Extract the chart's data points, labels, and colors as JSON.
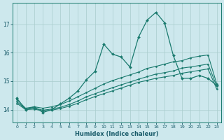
{
  "xlabel": "Humidex (Indice chaleur)",
  "background_color": "#cde8ed",
  "grid_color": "#a8cccc",
  "line_color": "#1a7a6e",
  "x_ticks": [
    0,
    1,
    2,
    3,
    4,
    5,
    6,
    7,
    8,
    9,
    10,
    11,
    12,
    13,
    14,
    15,
    16,
    17,
    18,
    19,
    20,
    21,
    22,
    23
  ],
  "y_ticks": [
    14,
    15,
    16,
    17
  ],
  "xlim": [
    -0.5,
    23.5
  ],
  "ylim": [
    13.55,
    17.75
  ],
  "lines": [
    {
      "x": [
        0,
        1,
        2,
        3,
        4,
        5,
        6,
        7,
        8,
        9,
        10,
        11,
        12,
        13,
        14,
        15,
        16,
        17,
        18,
        19,
        20,
        21,
        22,
        23
      ],
      "y": [
        14.4,
        14.0,
        14.1,
        13.9,
        14.0,
        14.2,
        14.4,
        14.65,
        15.05,
        15.35,
        16.3,
        15.95,
        15.85,
        15.5,
        16.55,
        17.15,
        17.42,
        17.05,
        15.9,
        15.1,
        15.1,
        15.2,
        15.1,
        14.85
      ],
      "marker": "D",
      "markersize": 2.0,
      "linewidth": 0.9
    },
    {
      "x": [
        0,
        1,
        2,
        3,
        4,
        5,
        6,
        7,
        8,
        9,
        10,
        11,
        12,
        13,
        14,
        15,
        16,
        17,
        18,
        19,
        20,
        21,
        22,
        23
      ],
      "y": [
        14.35,
        14.05,
        14.1,
        14.05,
        14.1,
        14.18,
        14.3,
        14.45,
        14.6,
        14.75,
        14.9,
        15.02,
        15.12,
        15.22,
        15.32,
        15.45,
        15.52,
        15.6,
        15.68,
        15.72,
        15.82,
        15.88,
        15.92,
        14.9
      ],
      "marker": "D",
      "markersize": 1.5,
      "linewidth": 0.8
    },
    {
      "x": [
        0,
        1,
        2,
        3,
        4,
        5,
        6,
        7,
        8,
        9,
        10,
        11,
        12,
        13,
        14,
        15,
        16,
        17,
        18,
        19,
        20,
        21,
        22,
        23
      ],
      "y": [
        14.28,
        14.02,
        14.05,
        13.98,
        14.02,
        14.08,
        14.18,
        14.3,
        14.45,
        14.56,
        14.67,
        14.77,
        14.87,
        14.97,
        15.07,
        15.16,
        15.25,
        15.3,
        15.36,
        15.46,
        15.5,
        15.55,
        15.6,
        14.82
      ],
      "marker": "D",
      "markersize": 1.5,
      "linewidth": 0.8
    },
    {
      "x": [
        0,
        1,
        2,
        3,
        4,
        5,
        6,
        7,
        8,
        9,
        10,
        11,
        12,
        13,
        14,
        15,
        16,
        17,
        18,
        19,
        20,
        21,
        22,
        23
      ],
      "y": [
        14.22,
        14.0,
        14.02,
        13.95,
        13.98,
        14.04,
        14.12,
        14.22,
        14.35,
        14.46,
        14.56,
        14.66,
        14.76,
        14.86,
        14.96,
        15.03,
        15.1,
        15.15,
        15.2,
        15.28,
        15.33,
        15.38,
        15.43,
        14.72
      ],
      "marker": "D",
      "markersize": 1.5,
      "linewidth": 0.8
    }
  ]
}
